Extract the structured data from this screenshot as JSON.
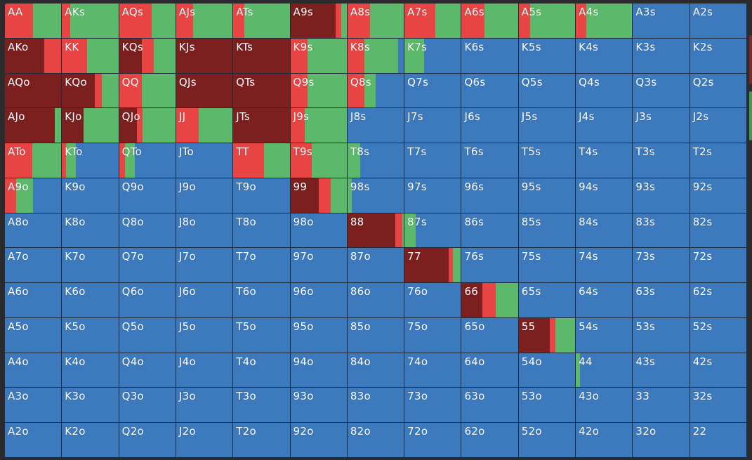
{
  "colors": {
    "raise": "#e84444",
    "allin": "#7b1f1f",
    "call": "#5cb86a",
    "fold": "#3c79bd"
  },
  "legend_order": [
    "allin",
    "raise",
    "call",
    "fold"
  ],
  "grid": {
    "rows": [
      [
        {
          "label": "AA",
          "mix": {
            "raise": 0.5,
            "call": 0.5
          }
        },
        {
          "label": "AKs",
          "mix": {
            "raise": 0.15,
            "call": 0.85
          }
        },
        {
          "label": "AQs",
          "mix": {
            "raise": 0.58,
            "call": 0.42
          }
        },
        {
          "label": "AJs",
          "mix": {
            "raise": 0.3,
            "call": 0.7
          }
        },
        {
          "label": "ATs",
          "mix": {
            "raise": 0.2,
            "call": 0.8
          }
        },
        {
          "label": "A9s",
          "mix": {
            "allin": 0.8,
            "raise": 0.1,
            "call": 0.1
          }
        },
        {
          "label": "A8s",
          "mix": {
            "raise": 0.4,
            "call": 0.6
          }
        },
        {
          "label": "A7s",
          "mix": {
            "raise": 0.55,
            "call": 0.45
          }
        },
        {
          "label": "A6s",
          "mix": {
            "raise": 0.4,
            "call": 0.6
          }
        },
        {
          "label": "A5s",
          "mix": {
            "raise": 0.2,
            "call": 0.8
          }
        },
        {
          "label": "A4s",
          "mix": {
            "raise": 0.18,
            "call": 0.82
          }
        },
        {
          "label": "A3s",
          "mix": {
            "fold": 1
          }
        },
        {
          "label": "A2s",
          "mix": {
            "fold": 1
          }
        }
      ],
      [
        {
          "label": "AKo",
          "mix": {
            "allin": 0.7,
            "raise": 0.3
          }
        },
        {
          "label": "KK",
          "mix": {
            "raise": 0.45,
            "call": 0.55
          }
        },
        {
          "label": "KQs",
          "mix": {
            "allin": 0.4,
            "raise": 0.22,
            "call": 0.38
          }
        },
        {
          "label": "KJs",
          "mix": {
            "allin": 1
          }
        },
        {
          "label": "KTs",
          "mix": {
            "allin": 1
          }
        },
        {
          "label": "K9s",
          "mix": {
            "raise": 0.3,
            "call": 0.7
          }
        },
        {
          "label": "K8s",
          "mix": {
            "raise": 0.3,
            "call": 0.6,
            "fold": 0.1
          }
        },
        {
          "label": "K7s",
          "mix": {
            "call": 0.35,
            "fold": 0.65
          }
        },
        {
          "label": "K6s",
          "mix": {
            "fold": 1
          }
        },
        {
          "label": "K5s",
          "mix": {
            "fold": 1
          }
        },
        {
          "label": "K4s",
          "mix": {
            "fold": 1
          }
        },
        {
          "label": "K3s",
          "mix": {
            "fold": 1
          }
        },
        {
          "label": "K2s",
          "mix": {
            "fold": 1
          }
        }
      ],
      [
        {
          "label": "AQo",
          "mix": {
            "allin": 1
          }
        },
        {
          "label": "KQo",
          "mix": {
            "allin": 0.58,
            "raise": 0.12,
            "call": 0.3
          }
        },
        {
          "label": "QQ",
          "mix": {
            "raise": 0.4,
            "call": 0.6
          }
        },
        {
          "label": "QJs",
          "mix": {
            "allin": 1
          }
        },
        {
          "label": "QTs",
          "mix": {
            "allin": 1
          }
        },
        {
          "label": "Q9s",
          "mix": {
            "raise": 0.3,
            "call": 0.7
          }
        },
        {
          "label": "Q8s",
          "mix": {
            "raise": 0.3,
            "call": 0.2,
            "fold": 0.5
          }
        },
        {
          "label": "Q7s",
          "mix": {
            "fold": 1
          }
        },
        {
          "label": "Q6s",
          "mix": {
            "fold": 1
          }
        },
        {
          "label": "Q5s",
          "mix": {
            "fold": 1
          }
        },
        {
          "label": "Q4s",
          "mix": {
            "fold": 1
          }
        },
        {
          "label": "Q3s",
          "mix": {
            "fold": 1
          }
        },
        {
          "label": "Q2s",
          "mix": {
            "fold": 1
          }
        }
      ],
      [
        {
          "label": "AJo",
          "mix": {
            "allin": 0.88,
            "call": 0.12
          }
        },
        {
          "label": "KJo",
          "mix": {
            "allin": 0.38,
            "call": 0.62
          }
        },
        {
          "label": "QJo",
          "mix": {
            "allin": 0.32,
            "raise": 0.1,
            "call": 0.58
          }
        },
        {
          "label": "JJ",
          "mix": {
            "raise": 0.4,
            "call": 0.6
          }
        },
        {
          "label": "JTs",
          "mix": {
            "allin": 1
          }
        },
        {
          "label": "J9s",
          "mix": {
            "raise": 0.25,
            "call": 0.75
          }
        },
        {
          "label": "J8s",
          "mix": {
            "fold": 1
          }
        },
        {
          "label": "J7s",
          "mix": {
            "fold": 1
          }
        },
        {
          "label": "J6s",
          "mix": {
            "fold": 1
          }
        },
        {
          "label": "J5s",
          "mix": {
            "fold": 1
          }
        },
        {
          "label": "J4s",
          "mix": {
            "fold": 1
          }
        },
        {
          "label": "J3s",
          "mix": {
            "fold": 1
          }
        },
        {
          "label": "J2s",
          "mix": {
            "fold": 1
          }
        }
      ],
      [
        {
          "label": "ATo",
          "mix": {
            "raise": 0.48,
            "call": 0.52
          }
        },
        {
          "label": "KTo",
          "mix": {
            "raise": 0.07,
            "call": 0.18,
            "fold": 0.75
          }
        },
        {
          "label": "QTo",
          "mix": {
            "raise": 0.1,
            "call": 0.18,
            "fold": 0.72
          }
        },
        {
          "label": "JTo",
          "mix": {
            "fold": 1
          }
        },
        {
          "label": "TT",
          "mix": {
            "raise": 0.55,
            "call": 0.45
          }
        },
        {
          "label": "T9s",
          "mix": {
            "raise": 0.38,
            "call": 0.62
          }
        },
        {
          "label": "T8s",
          "mix": {
            "call": 0.22,
            "fold": 0.78
          }
        },
        {
          "label": "T7s",
          "mix": {
            "fold": 1
          }
        },
        {
          "label": "T6s",
          "mix": {
            "fold": 1
          }
        },
        {
          "label": "T5s",
          "mix": {
            "fold": 1
          }
        },
        {
          "label": "T4s",
          "mix": {
            "fold": 1
          }
        },
        {
          "label": "T3s",
          "mix": {
            "fold": 1
          }
        },
        {
          "label": "T2s",
          "mix": {
            "fold": 1
          }
        }
      ],
      [
        {
          "label": "A9o",
          "mix": {
            "raise": 0.2,
            "call": 0.3,
            "fold": 0.5
          }
        },
        {
          "label": "K9o",
          "mix": {
            "fold": 1
          }
        },
        {
          "label": "Q9o",
          "mix": {
            "fold": 1
          }
        },
        {
          "label": "J9o",
          "mix": {
            "fold": 1
          }
        },
        {
          "label": "T9o",
          "mix": {
            "fold": 1
          }
        },
        {
          "label": "99",
          "mix": {
            "allin": 0.5,
            "raise": 0.22,
            "call": 0.28
          }
        },
        {
          "label": "98s",
          "mix": {
            "call": 0.08,
            "fold": 0.92
          }
        },
        {
          "label": "97s",
          "mix": {
            "fold": 1
          }
        },
        {
          "label": "96s",
          "mix": {
            "fold": 1
          }
        },
        {
          "label": "95s",
          "mix": {
            "fold": 1
          }
        },
        {
          "label": "94s",
          "mix": {
            "fold": 1
          }
        },
        {
          "label": "93s",
          "mix": {
            "fold": 1
          }
        },
        {
          "label": "92s",
          "mix": {
            "fold": 1
          }
        }
      ],
      [
        {
          "label": "A8o",
          "mix": {
            "fold": 1
          }
        },
        {
          "label": "K8o",
          "mix": {
            "fold": 1
          }
        },
        {
          "label": "Q8o",
          "mix": {
            "fold": 1
          }
        },
        {
          "label": "J8o",
          "mix": {
            "fold": 1
          }
        },
        {
          "label": "T8o",
          "mix": {
            "fold": 1
          }
        },
        {
          "label": "98o",
          "mix": {
            "fold": 1
          }
        },
        {
          "label": "88",
          "mix": {
            "allin": 0.85,
            "raise": 0.12,
            "call": 0.03
          }
        },
        {
          "label": "87s",
          "mix": {
            "call": 0.2,
            "fold": 0.8
          }
        },
        {
          "label": "86s",
          "mix": {
            "fold": 1
          }
        },
        {
          "label": "85s",
          "mix": {
            "fold": 1
          }
        },
        {
          "label": "84s",
          "mix": {
            "fold": 1
          }
        },
        {
          "label": "83s",
          "mix": {
            "fold": 1
          }
        },
        {
          "label": "82s",
          "mix": {
            "fold": 1
          }
        }
      ],
      [
        {
          "label": "A7o",
          "mix": {
            "fold": 1
          }
        },
        {
          "label": "K7o",
          "mix": {
            "fold": 1
          }
        },
        {
          "label": "Q7o",
          "mix": {
            "fold": 1
          }
        },
        {
          "label": "J7o",
          "mix": {
            "fold": 1
          }
        },
        {
          "label": "T7o",
          "mix": {
            "fold": 1
          }
        },
        {
          "label": "97o",
          "mix": {
            "fold": 1
          }
        },
        {
          "label": "87o",
          "mix": {
            "fold": 1
          }
        },
        {
          "label": "77",
          "mix": {
            "allin": 0.78,
            "raise": 0.08,
            "call": 0.14
          }
        },
        {
          "label": "76s",
          "mix": {
            "fold": 1
          }
        },
        {
          "label": "75s",
          "mix": {
            "fold": 1
          }
        },
        {
          "label": "74s",
          "mix": {
            "fold": 1
          }
        },
        {
          "label": "73s",
          "mix": {
            "fold": 1
          }
        },
        {
          "label": "72s",
          "mix": {
            "fold": 1
          }
        }
      ],
      [
        {
          "label": "A6o",
          "mix": {
            "fold": 1
          }
        },
        {
          "label": "K6o",
          "mix": {
            "fold": 1
          }
        },
        {
          "label": "Q6o",
          "mix": {
            "fold": 1
          }
        },
        {
          "label": "J6o",
          "mix": {
            "fold": 1
          }
        },
        {
          "label": "T6o",
          "mix": {
            "fold": 1
          }
        },
        {
          "label": "96o",
          "mix": {
            "fold": 1
          }
        },
        {
          "label": "86o",
          "mix": {
            "fold": 1
          }
        },
        {
          "label": "76o",
          "mix": {
            "fold": 1
          }
        },
        {
          "label": "66",
          "mix": {
            "allin": 0.37,
            "raise": 0.23,
            "call": 0.4
          }
        },
        {
          "label": "65s",
          "mix": {
            "fold": 1
          }
        },
        {
          "label": "64s",
          "mix": {
            "fold": 1
          }
        },
        {
          "label": "63s",
          "mix": {
            "fold": 1
          }
        },
        {
          "label": "62s",
          "mix": {
            "fold": 1
          }
        }
      ],
      [
        {
          "label": "A5o",
          "mix": {
            "fold": 1
          }
        },
        {
          "label": "K5o",
          "mix": {
            "fold": 1
          }
        },
        {
          "label": "Q5o",
          "mix": {
            "fold": 1
          }
        },
        {
          "label": "J5o",
          "mix": {
            "fold": 1
          }
        },
        {
          "label": "T5o",
          "mix": {
            "fold": 1
          }
        },
        {
          "label": "95o",
          "mix": {
            "fold": 1
          }
        },
        {
          "label": "85o",
          "mix": {
            "fold": 1
          }
        },
        {
          "label": "75o",
          "mix": {
            "fold": 1
          }
        },
        {
          "label": "65o",
          "mix": {
            "fold": 1
          }
        },
        {
          "label": "55",
          "mix": {
            "allin": 0.55,
            "raise": 0.1,
            "call": 0.35
          }
        },
        {
          "label": "54s",
          "mix": {
            "fold": 1
          }
        },
        {
          "label": "53s",
          "mix": {
            "fold": 1
          }
        },
        {
          "label": "52s",
          "mix": {
            "fold": 1
          }
        }
      ],
      [
        {
          "label": "A4o",
          "mix": {
            "fold": 1
          }
        },
        {
          "label": "K4o",
          "mix": {
            "fold": 1
          }
        },
        {
          "label": "Q4o",
          "mix": {
            "fold": 1
          }
        },
        {
          "label": "J4o",
          "mix": {
            "fold": 1
          }
        },
        {
          "label": "T4o",
          "mix": {
            "fold": 1
          }
        },
        {
          "label": "94o",
          "mix": {
            "fold": 1
          }
        },
        {
          "label": "84o",
          "mix": {
            "fold": 1
          }
        },
        {
          "label": "74o",
          "mix": {
            "fold": 1
          }
        },
        {
          "label": "64o",
          "mix": {
            "fold": 1
          }
        },
        {
          "label": "54o",
          "mix": {
            "fold": 1
          }
        },
        {
          "label": "44",
          "mix": {
            "call": 0.08,
            "fold": 0.92
          }
        },
        {
          "label": "43s",
          "mix": {
            "fold": 1
          }
        },
        {
          "label": "42s",
          "mix": {
            "fold": 1
          }
        }
      ],
      [
        {
          "label": "A3o",
          "mix": {
            "fold": 1
          }
        },
        {
          "label": "K3o",
          "mix": {
            "fold": 1
          }
        },
        {
          "label": "Q3o",
          "mix": {
            "fold": 1
          }
        },
        {
          "label": "J3o",
          "mix": {
            "fold": 1
          }
        },
        {
          "label": "T3o",
          "mix": {
            "fold": 1
          }
        },
        {
          "label": "93o",
          "mix": {
            "fold": 1
          }
        },
        {
          "label": "83o",
          "mix": {
            "fold": 1
          }
        },
        {
          "label": "73o",
          "mix": {
            "fold": 1
          }
        },
        {
          "label": "63o",
          "mix": {
            "fold": 1
          }
        },
        {
          "label": "53o",
          "mix": {
            "fold": 1
          }
        },
        {
          "label": "43o",
          "mix": {
            "fold": 1
          }
        },
        {
          "label": "33",
          "mix": {
            "fold": 1
          }
        },
        {
          "label": "32s",
          "mix": {
            "fold": 1
          }
        }
      ],
      [
        {
          "label": "A2o",
          "mix": {
            "fold": 1
          }
        },
        {
          "label": "K2o",
          "mix": {
            "fold": 1
          }
        },
        {
          "label": "Q2o",
          "mix": {
            "fold": 1
          }
        },
        {
          "label": "J2o",
          "mix": {
            "fold": 1
          }
        },
        {
          "label": "T2o",
          "mix": {
            "fold": 1
          }
        },
        {
          "label": "92o",
          "mix": {
            "fold": 1
          }
        },
        {
          "label": "82o",
          "mix": {
            "fold": 1
          }
        },
        {
          "label": "72o",
          "mix": {
            "fold": 1
          }
        },
        {
          "label": "62o",
          "mix": {
            "fold": 1
          }
        },
        {
          "label": "52o",
          "mix": {
            "fold": 1
          }
        },
        {
          "label": "42o",
          "mix": {
            "fold": 1
          }
        },
        {
          "label": "32o",
          "mix": {
            "fold": 1
          }
        },
        {
          "label": "22",
          "mix": {
            "fold": 1
          }
        }
      ]
    ]
  }
}
